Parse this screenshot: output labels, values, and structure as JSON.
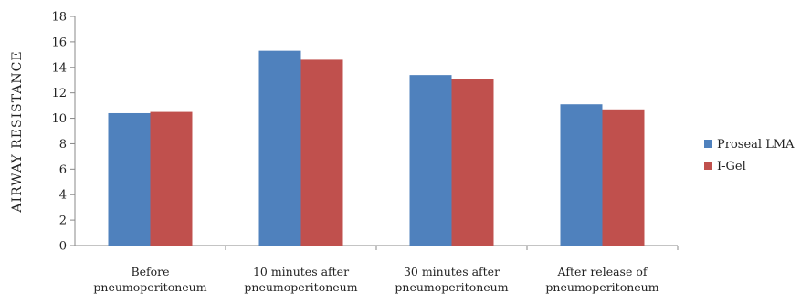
{
  "chart_data": {
    "type": "bar",
    "categories": [
      [
        "Before",
        "pneumoperitoneum"
      ],
      [
        "10 minutes after",
        "pneumoperitoneum"
      ],
      [
        "30 minutes after",
        "pneumoperitoneum"
      ],
      [
        "After release of",
        "pneumoperitoneum"
      ]
    ],
    "series": [
      {
        "name": "Proseal LMA",
        "values": [
          10.4,
          15.3,
          13.4,
          11.1
        ],
        "color": "#4f81bd"
      },
      {
        "name": "I-Gel",
        "values": [
          10.5,
          14.6,
          13.1,
          10.7
        ],
        "color": "#c0504d"
      }
    ],
    "ylabel": "AIRWAY RESISTANCE",
    "xlabel": "",
    "ylim": [
      0,
      18
    ],
    "yticks": [
      0,
      2,
      4,
      6,
      8,
      10,
      12,
      14,
      16,
      18
    ],
    "grid": false,
    "legend_position": "right"
  }
}
